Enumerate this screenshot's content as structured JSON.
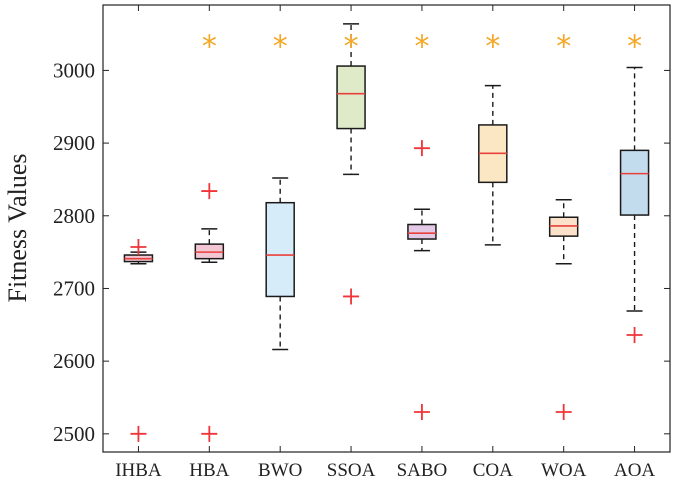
{
  "chart_data": {
    "type": "box",
    "title": "",
    "xlabel": "",
    "ylabel": "Fitness Values",
    "ylim": [
      2475,
      3090
    ],
    "yticks": [
      2500,
      2600,
      2700,
      2800,
      2900,
      3000
    ],
    "grid": false,
    "categories": [
      "IHBA",
      "HBA",
      "BWO",
      "SSOA",
      "SABO",
      "COA",
      "WOA",
      "AOA"
    ],
    "boxes": [
      {
        "name": "IHBA",
        "whisker_low": 2734,
        "q1": 2737,
        "median": 2741,
        "q3": 2746,
        "whisker_high": 2750,
        "outliers": [
          2757,
          2500
        ],
        "fill": "#f2c7d3"
      },
      {
        "name": "HBA",
        "whisker_low": 2736,
        "q1": 2741,
        "median": 2750,
        "q3": 2761,
        "whisker_high": 2782,
        "outliers": [
          2834,
          2500
        ],
        "fill": "#f2c7d3"
      },
      {
        "name": "BWO",
        "whisker_low": 2616,
        "q1": 2689,
        "median": 2746,
        "q3": 2818,
        "whisker_high": 2852,
        "outliers": [],
        "fill": "#d6ecf9"
      },
      {
        "name": "SSOA",
        "whisker_low": 2857,
        "q1": 2920,
        "median": 2968,
        "q3": 3006,
        "whisker_high": 3064,
        "outliers": [
          2689
        ],
        "fill": "#dfeac8"
      },
      {
        "name": "SABO",
        "whisker_low": 2752,
        "q1": 2768,
        "median": 2776,
        "q3": 2788,
        "whisker_high": 2809,
        "outliers": [
          2893,
          2530
        ],
        "fill": "#e3c9e5"
      },
      {
        "name": "COA",
        "whisker_low": 2760,
        "q1": 2846,
        "median": 2886,
        "q3": 2925,
        "whisker_high": 2979,
        "outliers": [],
        "fill": "#fbe7c4"
      },
      {
        "name": "WOA",
        "whisker_low": 2734,
        "q1": 2772,
        "median": 2786,
        "q3": 2798,
        "whisker_high": 2822,
        "outliers": [
          2530
        ],
        "fill": "#fbe1c9"
      },
      {
        "name": "AOA",
        "whisker_low": 2669,
        "q1": 2801,
        "median": 2858,
        "q3": 2890,
        "whisker_high": 3004,
        "outliers": [
          2636
        ],
        "fill": "#c2dbed"
      }
    ],
    "star_marker_value": 3037,
    "colors": {
      "median": "#e8403a",
      "outlier": "#f0353a",
      "star": "#f5a623",
      "box_edge": "#1a1a1a",
      "whisker": "#1a1a1a"
    }
  }
}
